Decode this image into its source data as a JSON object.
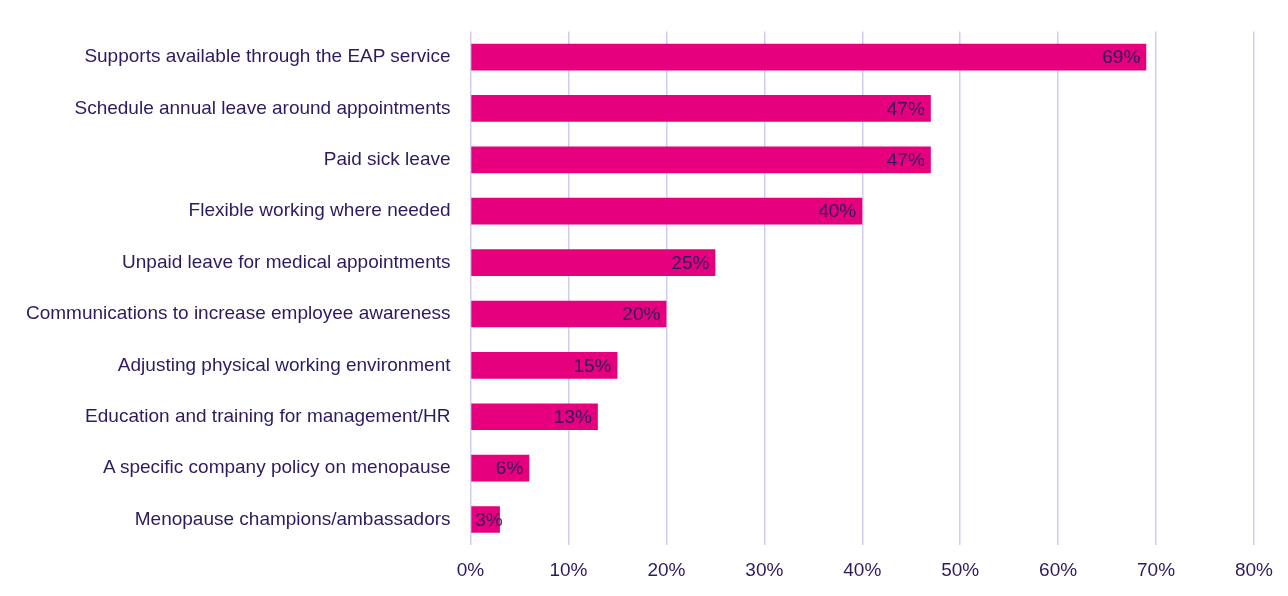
{
  "chart_data": {
    "type": "bar",
    "orientation": "horizontal",
    "categories": [
      "Supports available through the EAP service",
      "Schedule annual leave around appointments",
      "Paid sick leave",
      "Flexible working where needed",
      "Unpaid leave for medical appointments",
      "Communications to increase employee awareness",
      "Adjusting physical working environment",
      "Education and training for management/HR",
      "A specific company policy on menopause",
      "Menopause champions/ambassadors"
    ],
    "values": [
      69,
      47,
      47,
      40,
      25,
      20,
      15,
      13,
      6,
      3
    ],
    "value_labels": [
      "69%",
      "47%",
      "47%",
      "40%",
      "25%",
      "20%",
      "15%",
      "13%",
      "6%",
      "3%"
    ],
    "color": "#e6007e",
    "xlim": [
      0,
      80
    ],
    "xticks": [
      {
        "value": 0,
        "label": "0%"
      },
      {
        "value": 10,
        "label": "10%"
      },
      {
        "value": 20,
        "label": "20%"
      },
      {
        "value": 30,
        "label": "30%"
      },
      {
        "value": 40,
        "label": "40%"
      },
      {
        "value": 50,
        "label": "50%"
      },
      {
        "value": 60,
        "label": "60%"
      },
      {
        "value": 70,
        "label": "70%"
      },
      {
        "value": 80,
        "label": "80%"
      }
    ],
    "grid": "x",
    "legend": false
  }
}
